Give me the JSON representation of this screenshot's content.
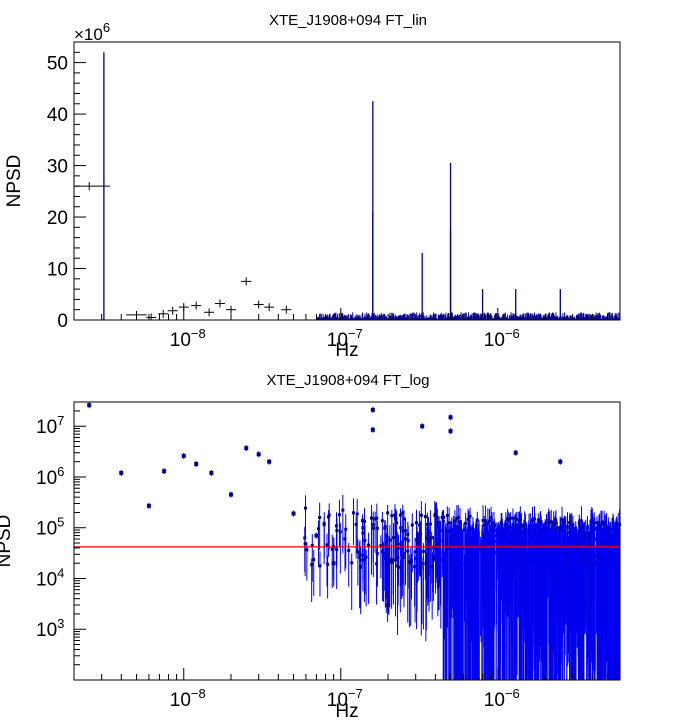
{
  "colors": {
    "data": "#00008b",
    "data_log": "#0000ee",
    "threshold": "#ff0000",
    "axis": "#000000"
  },
  "chart_data": [
    {
      "type": "line",
      "title": "XTE_J1908+094 FT_lin",
      "xlabel": "Hz",
      "ylabel": "NPSD",
      "y_multiplier": "×10",
      "y_multiplier_exp": "6",
      "xscale": "log",
      "xlim": [
        2e-09,
        6e-06
      ],
      "ylim": [
        0,
        54
      ],
      "y_units": "millions",
      "yticks": [
        "0",
        "10",
        "20",
        "30",
        "40",
        "50"
      ],
      "xticks": [
        {
          "base": "10",
          "exp": "−8"
        },
        {
          "base": "10",
          "exp": "−7"
        },
        {
          "base": "10",
          "exp": "−6"
        }
      ],
      "spikes": [
        {
          "x": 3.1e-09,
          "y": 52
        },
        {
          "x": 1.6e-07,
          "y": 42.5
        },
        {
          "x": 1.6e-07,
          "y": 21
        },
        {
          "x": 3.3e-07,
          "y": 13
        },
        {
          "x": 5e-07,
          "y": 30.5
        },
        {
          "x": 5e-07,
          "y": 17.5
        },
        {
          "x": 8e-07,
          "y": 6
        },
        {
          "x": 1.3e-06,
          "y": 6
        },
        {
          "x": 2.5e-06,
          "y": 6
        }
      ],
      "points": [
        {
          "x": 2.5e-09,
          "y": 26,
          "xerr": [
            2e-09,
            3.4e-09
          ]
        },
        {
          "x": 5e-09,
          "y": 1.0,
          "xerr": [
            4.3e-09,
            5.8e-09
          ]
        },
        {
          "x": 6.2e-09,
          "y": 0.5
        },
        {
          "x": 7.4e-09,
          "y": 1.2
        },
        {
          "x": 8.5e-09,
          "y": 1.8
        },
        {
          "x": 1e-08,
          "y": 2.5
        },
        {
          "x": 1.2e-08,
          "y": 2.8
        },
        {
          "x": 1.45e-08,
          "y": 1.5
        },
        {
          "x": 1.7e-08,
          "y": 3.2
        },
        {
          "x": 2e-08,
          "y": 2.0
        },
        {
          "x": 2.5e-08,
          "y": 7.5
        },
        {
          "x": 3e-08,
          "y": 3.0
        },
        {
          "x": 3.5e-08,
          "y": 2.5
        },
        {
          "x": 4.5e-08,
          "y": 2.0
        }
      ]
    },
    {
      "type": "scatter",
      "title": "XTE_J1908+094 FT_log",
      "xlabel": "Hz",
      "ylabel": "NPSD",
      "xscale": "log",
      "yscale": "log",
      "xlim": [
        2e-09,
        6e-06
      ],
      "ylim": [
        100,
        30000000.0
      ],
      "threshold": 42000,
      "yticks": [
        {
          "base": "10",
          "exp": "3"
        },
        {
          "base": "10",
          "exp": "4"
        },
        {
          "base": "10",
          "exp": "5"
        },
        {
          "base": "10",
          "exp": "6"
        },
        {
          "base": "10",
          "exp": "7"
        }
      ],
      "xticks": [
        {
          "base": "10",
          "exp": "−8"
        },
        {
          "base": "10",
          "exp": "−7"
        },
        {
          "base": "10",
          "exp": "−6"
        }
      ],
      "points": [
        {
          "x": 2.5e-09,
          "y": 26000000.0
        },
        {
          "x": 4e-09,
          "y": 1200000.0
        },
        {
          "x": 6e-09,
          "y": 270000.0
        },
        {
          "x": 7.5e-09,
          "y": 1300000.0
        },
        {
          "x": 1e-08,
          "y": 2600000.0
        },
        {
          "x": 1.2e-08,
          "y": 1800000.0
        },
        {
          "x": 1.5e-08,
          "y": 1200000.0
        },
        {
          "x": 2e-08,
          "y": 450000.0
        },
        {
          "x": 2.5e-08,
          "y": 3700000.0
        },
        {
          "x": 3e-08,
          "y": 2800000.0
        },
        {
          "x": 3.5e-08,
          "y": 2000000.0
        },
        {
          "x": 5e-08,
          "y": 190000.0
        },
        {
          "x": 7e-08,
          "y": 70000.0
        },
        {
          "x": 9e-08,
          "y": 20000.0
        },
        {
          "x": 1.6e-07,
          "y": 21000000.0
        },
        {
          "x": 1.6e-07,
          "y": 8500000.0
        },
        {
          "x": 2e-07,
          "y": 3000.0
        },
        {
          "x": 3.3e-07,
          "y": 10000000.0
        },
        {
          "x": 5e-07,
          "y": 15000000.0
        },
        {
          "x": 5e-07,
          "y": 8000000.0
        },
        {
          "x": 1.3e-06,
          "y": 3000000.0
        },
        {
          "x": 2.5e-06,
          "y": 2000000.0
        }
      ]
    }
  ]
}
